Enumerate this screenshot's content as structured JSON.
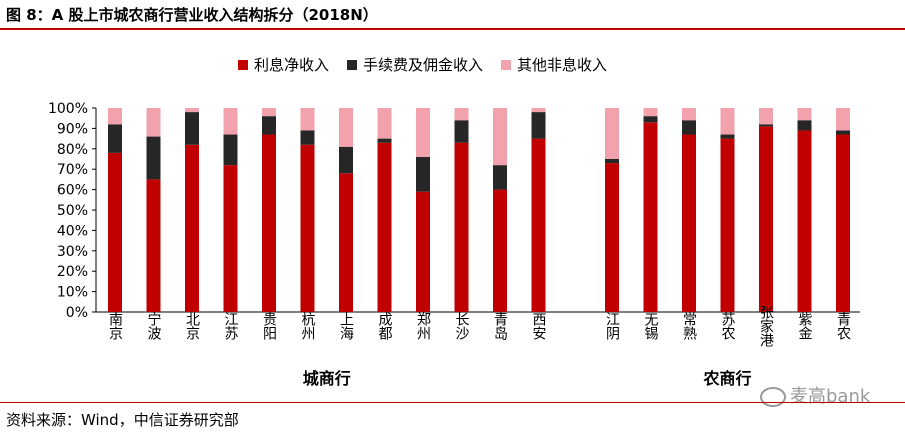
{
  "figure": {
    "title": "图 8：A 股上市城农商行营业收入结构拆分（2018N）",
    "source": "资料来源：Wind，中信证券研究部",
    "watermark": "麦高bank"
  },
  "colors": {
    "interest": "#c00000",
    "fee": "#262626",
    "other": "#f2a2ad",
    "rule": "#c00000",
    "axis": "#000000"
  },
  "chart_data": {
    "type": "bar",
    "stacked": true,
    "legend_position": "top",
    "ylim": [
      0,
      100
    ],
    "yticks": [
      "0%",
      "10%",
      "20%",
      "30%",
      "40%",
      "50%",
      "60%",
      "70%",
      "80%",
      "90%",
      "100%"
    ],
    "grid": false,
    "groups": [
      {
        "label": "城商行",
        "categories": [
          "南京",
          "宁波",
          "北京",
          "江苏",
          "贵阳",
          "杭州",
          "上海",
          "成都",
          "郑州",
          "长沙",
          "青岛",
          "西安"
        ]
      },
      {
        "label": "农商行",
        "categories": [
          "江阴",
          "无锡",
          "常熟",
          "苏农",
          "张家港",
          "紫金",
          "青农"
        ]
      }
    ],
    "series": [
      {
        "name": "利息净收入",
        "color_key": "interest",
        "values": [
          78,
          65,
          82,
          72,
          87,
          82,
          68,
          83,
          59,
          83,
          60,
          85,
          73,
          93,
          87,
          85,
          91,
          89,
          87
        ]
      },
      {
        "name": "手续费及佣金收入",
        "color_key": "fee",
        "values": [
          14,
          21,
          16,
          15,
          9,
          7,
          13,
          2,
          17,
          11,
          12,
          13,
          2,
          3,
          7,
          2,
          1,
          5,
          2
        ]
      },
      {
        "name": "其他非息收入",
        "color_key": "other",
        "values": [
          8,
          14,
          2,
          13,
          4,
          11,
          19,
          15,
          24,
          6,
          28,
          2,
          25,
          4,
          6,
          13,
          8,
          6,
          11
        ]
      }
    ]
  }
}
